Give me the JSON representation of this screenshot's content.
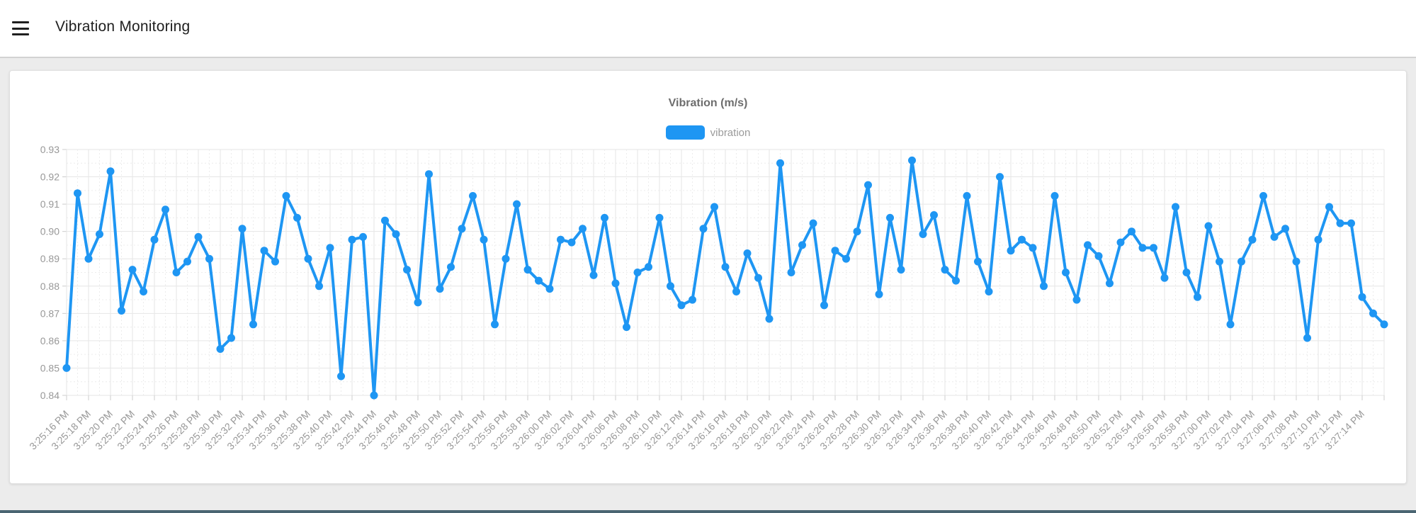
{
  "header": {
    "title": "Vibration Monitoring",
    "menu_icon": "hamburger"
  },
  "footer": {
    "accent_color": "#4a6572"
  },
  "chart_data": {
    "type": "line",
    "title": "Vibration (m/s)",
    "legend": {
      "label": "vibration",
      "position": "top"
    },
    "line_color": "#1e96f3",
    "point_style": "circle",
    "grid": true,
    "ylim": [
      0.84,
      0.93
    ],
    "y_tick_step": 0.01,
    "xlabel": "",
    "ylabel": "",
    "x_interval_seconds": 1,
    "x_label_every_n_points": 2,
    "x_labels": [
      "3:25:16 PM",
      "3:25:18 PM",
      "3:25:20 PM",
      "3:25:22 PM",
      "3:25:24 PM",
      "3:25:26 PM",
      "3:25:28 PM",
      "3:25:30 PM",
      "3:25:32 PM",
      "3:25:34 PM",
      "3:25:36 PM",
      "3:25:38 PM",
      "3:25:40 PM",
      "3:25:42 PM",
      "3:25:44 PM",
      "3:25:46 PM",
      "3:25:48 PM",
      "3:25:50 PM",
      "3:25:52 PM",
      "3:25:54 PM",
      "3:25:56 PM",
      "3:25:58 PM",
      "3:26:00 PM",
      "3:26:02 PM",
      "3:26:04 PM",
      "3:26:06 PM",
      "3:26:08 PM",
      "3:26:10 PM",
      "3:26:12 PM",
      "3:26:14 PM",
      "3:26:16 PM",
      "3:26:18 PM",
      "3:26:20 PM",
      "3:26:22 PM",
      "3:26:24 PM",
      "3:26:26 PM",
      "3:26:28 PM",
      "3:26:30 PM",
      "3:26:32 PM",
      "3:26:34 PM",
      "3:26:36 PM",
      "3:26:38 PM",
      "3:26:40 PM",
      "3:26:42 PM",
      "3:26:44 PM",
      "3:26:46 PM",
      "3:26:48 PM",
      "3:26:50 PM",
      "3:26:52 PM",
      "3:26:54 PM",
      "3:26:56 PM",
      "3:26:58 PM",
      "3:27:00 PM",
      "3:27:02 PM",
      "3:27:04 PM",
      "3:27:06 PM",
      "3:27:08 PM",
      "3:27:10 PM",
      "3:27:12 PM",
      "3:27:14 PM"
    ],
    "values": [
      0.85,
      0.914,
      0.89,
      0.899,
      0.922,
      0.871,
      0.886,
      0.878,
      0.897,
      0.908,
      0.885,
      0.889,
      0.898,
      0.89,
      0.857,
      0.861,
      0.901,
      0.866,
      0.893,
      0.889,
      0.913,
      0.905,
      0.89,
      0.88,
      0.894,
      0.847,
      0.897,
      0.898,
      0.84,
      0.904,
      0.899,
      0.886,
      0.874,
      0.921,
      0.879,
      0.887,
      0.901,
      0.913,
      0.897,
      0.866,
      0.89,
      0.91,
      0.886,
      0.882,
      0.879,
      0.897,
      0.896,
      0.901,
      0.884,
      0.905,
      0.881,
      0.865,
      0.885,
      0.887,
      0.905,
      0.88,
      0.873,
      0.875,
      0.901,
      0.909,
      0.887,
      0.878,
      0.892,
      0.883,
      0.868,
      0.925,
      0.885,
      0.895,
      0.903,
      0.873,
      0.893,
      0.89,
      0.9,
      0.917,
      0.877,
      0.905,
      0.886,
      0.926,
      0.899,
      0.906,
      0.886,
      0.882,
      0.913,
      0.889,
      0.878,
      0.92,
      0.893,
      0.897,
      0.894,
      0.88,
      0.913,
      0.885,
      0.875,
      0.895,
      0.891,
      0.881,
      0.896,
      0.9,
      0.894,
      0.894,
      0.883,
      0.909,
      0.885,
      0.876,
      0.902,
      0.889,
      0.866,
      0.889,
      0.897,
      0.913,
      0.898,
      0.901,
      0.889,
      0.861,
      0.897,
      0.909,
      0.903,
      0.903,
      0.876,
      0.87,
      0.866
    ]
  }
}
